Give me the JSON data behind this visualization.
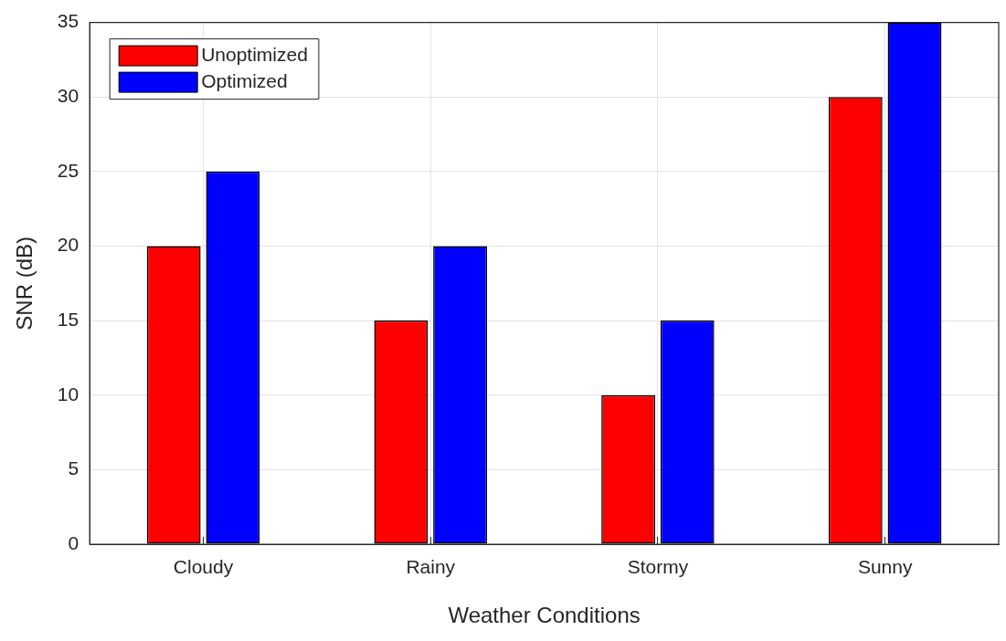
{
  "chart_data": {
    "type": "bar",
    "xlabel": "Weather Conditions",
    "ylabel": "SNR (dB)",
    "categories": [
      "Cloudy",
      "Rainy",
      "Stormy",
      "Sunny"
    ],
    "series": [
      {
        "name": "Unoptimized",
        "color": "#ff0000",
        "values": [
          20,
          15,
          10,
          30
        ]
      },
      {
        "name": "Optimized",
        "color": "#0000ff",
        "values": [
          25,
          20,
          15,
          35
        ]
      }
    ],
    "ylim": [
      0,
      35
    ],
    "yticks": [
      0,
      5,
      10,
      15,
      20,
      25,
      30,
      35
    ],
    "grid": true,
    "legend": "top left"
  }
}
